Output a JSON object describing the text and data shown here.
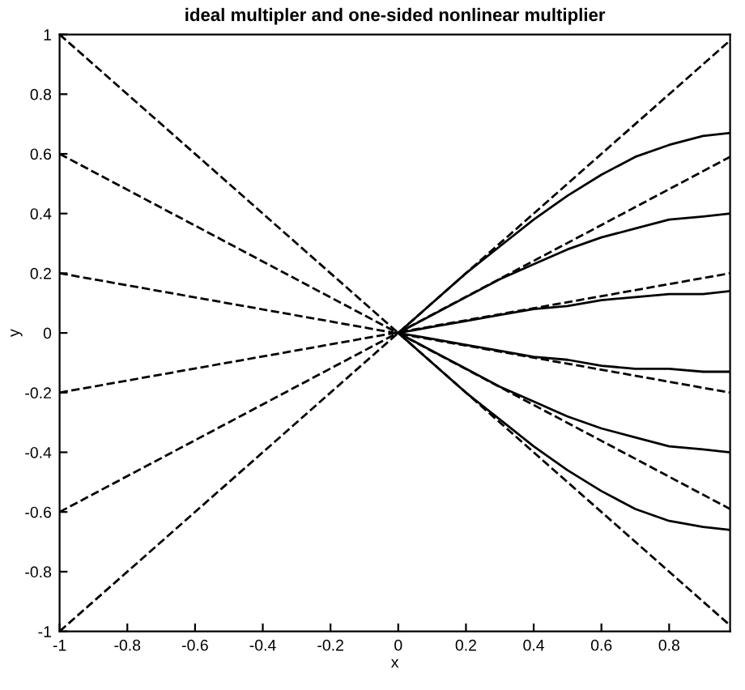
{
  "chart_data": {
    "type": "line",
    "title": "ideal multipler and one-sided nonlinear multiplier",
    "xlabel": "x",
    "ylabel": "y",
    "xlim": [
      -1,
      0.98
    ],
    "ylim": [
      -1,
      1
    ],
    "xticks": [
      -1,
      -0.8,
      -0.6,
      -0.4,
      -0.2,
      0,
      0.2,
      0.4,
      0.6,
      0.8
    ],
    "yticks": [
      -1,
      -0.8,
      -0.6,
      -0.4,
      -0.2,
      0,
      0.2,
      0.4,
      0.6,
      0.8,
      1
    ],
    "grid": false,
    "series": [
      {
        "color": "#000000",
        "line_style": "dashed",
        "x": [
          -1,
          0.98
        ],
        "values": [
          -1,
          0.98
        ]
      },
      {
        "color": "#000000",
        "line_style": "dashed",
        "x": [
          -1,
          0.98
        ],
        "values": [
          -0.6,
          0.59
        ]
      },
      {
        "color": "#000000",
        "line_style": "dashed",
        "x": [
          -1,
          0.98
        ],
        "values": [
          -0.2,
          0.2
        ]
      },
      {
        "color": "#000000",
        "line_style": "dashed",
        "x": [
          -1,
          0.98
        ],
        "values": [
          0.2,
          -0.2
        ]
      },
      {
        "color": "#000000",
        "line_style": "dashed",
        "x": [
          -1,
          0.98
        ],
        "values": [
          0.6,
          -0.59
        ]
      },
      {
        "color": "#000000",
        "line_style": "dashed",
        "x": [
          -1,
          0.98
        ],
        "values": [
          1,
          -0.98
        ]
      },
      {
        "color": "#000000",
        "line_style": "solid",
        "x": [
          0,
          0.1,
          0.2,
          0.3,
          0.4,
          0.5,
          0.6,
          0.7,
          0.8,
          0.9,
          0.98
        ],
        "values": [
          0,
          0.1,
          0.2,
          0.29,
          0.38,
          0.46,
          0.53,
          0.59,
          0.63,
          0.66,
          0.67
        ]
      },
      {
        "color": "#000000",
        "line_style": "solid",
        "x": [
          0,
          0.1,
          0.2,
          0.3,
          0.4,
          0.5,
          0.6,
          0.7,
          0.8,
          0.9,
          0.98
        ],
        "values": [
          0,
          0.06,
          0.12,
          0.18,
          0.23,
          0.28,
          0.32,
          0.35,
          0.38,
          0.39,
          0.4
        ]
      },
      {
        "color": "#000000",
        "line_style": "solid",
        "x": [
          0,
          0.1,
          0.2,
          0.3,
          0.4,
          0.5,
          0.6,
          0.7,
          0.8,
          0.9,
          0.98
        ],
        "values": [
          0,
          0.02,
          0.04,
          0.06,
          0.08,
          0.09,
          0.11,
          0.12,
          0.13,
          0.13,
          0.14
        ]
      },
      {
        "color": "#000000",
        "line_style": "solid",
        "x": [
          0,
          0.1,
          0.2,
          0.3,
          0.4,
          0.5,
          0.6,
          0.7,
          0.8,
          0.9,
          0.98
        ],
        "values": [
          0,
          -0.02,
          -0.04,
          -0.06,
          -0.08,
          -0.09,
          -0.11,
          -0.12,
          -0.12,
          -0.13,
          -0.13
        ]
      },
      {
        "color": "#000000",
        "line_style": "solid",
        "x": [
          0,
          0.1,
          0.2,
          0.3,
          0.4,
          0.5,
          0.6,
          0.7,
          0.8,
          0.9,
          0.98
        ],
        "values": [
          0,
          -0.06,
          -0.12,
          -0.18,
          -0.23,
          -0.28,
          -0.32,
          -0.35,
          -0.38,
          -0.39,
          -0.4
        ]
      },
      {
        "color": "#000000",
        "line_style": "solid",
        "x": [
          0,
          0.1,
          0.2,
          0.3,
          0.4,
          0.5,
          0.6,
          0.7,
          0.8,
          0.9,
          0.98
        ],
        "values": [
          0,
          -0.1,
          -0.2,
          -0.29,
          -0.38,
          -0.46,
          -0.53,
          -0.59,
          -0.63,
          -0.65,
          -0.66
        ]
      }
    ]
  }
}
